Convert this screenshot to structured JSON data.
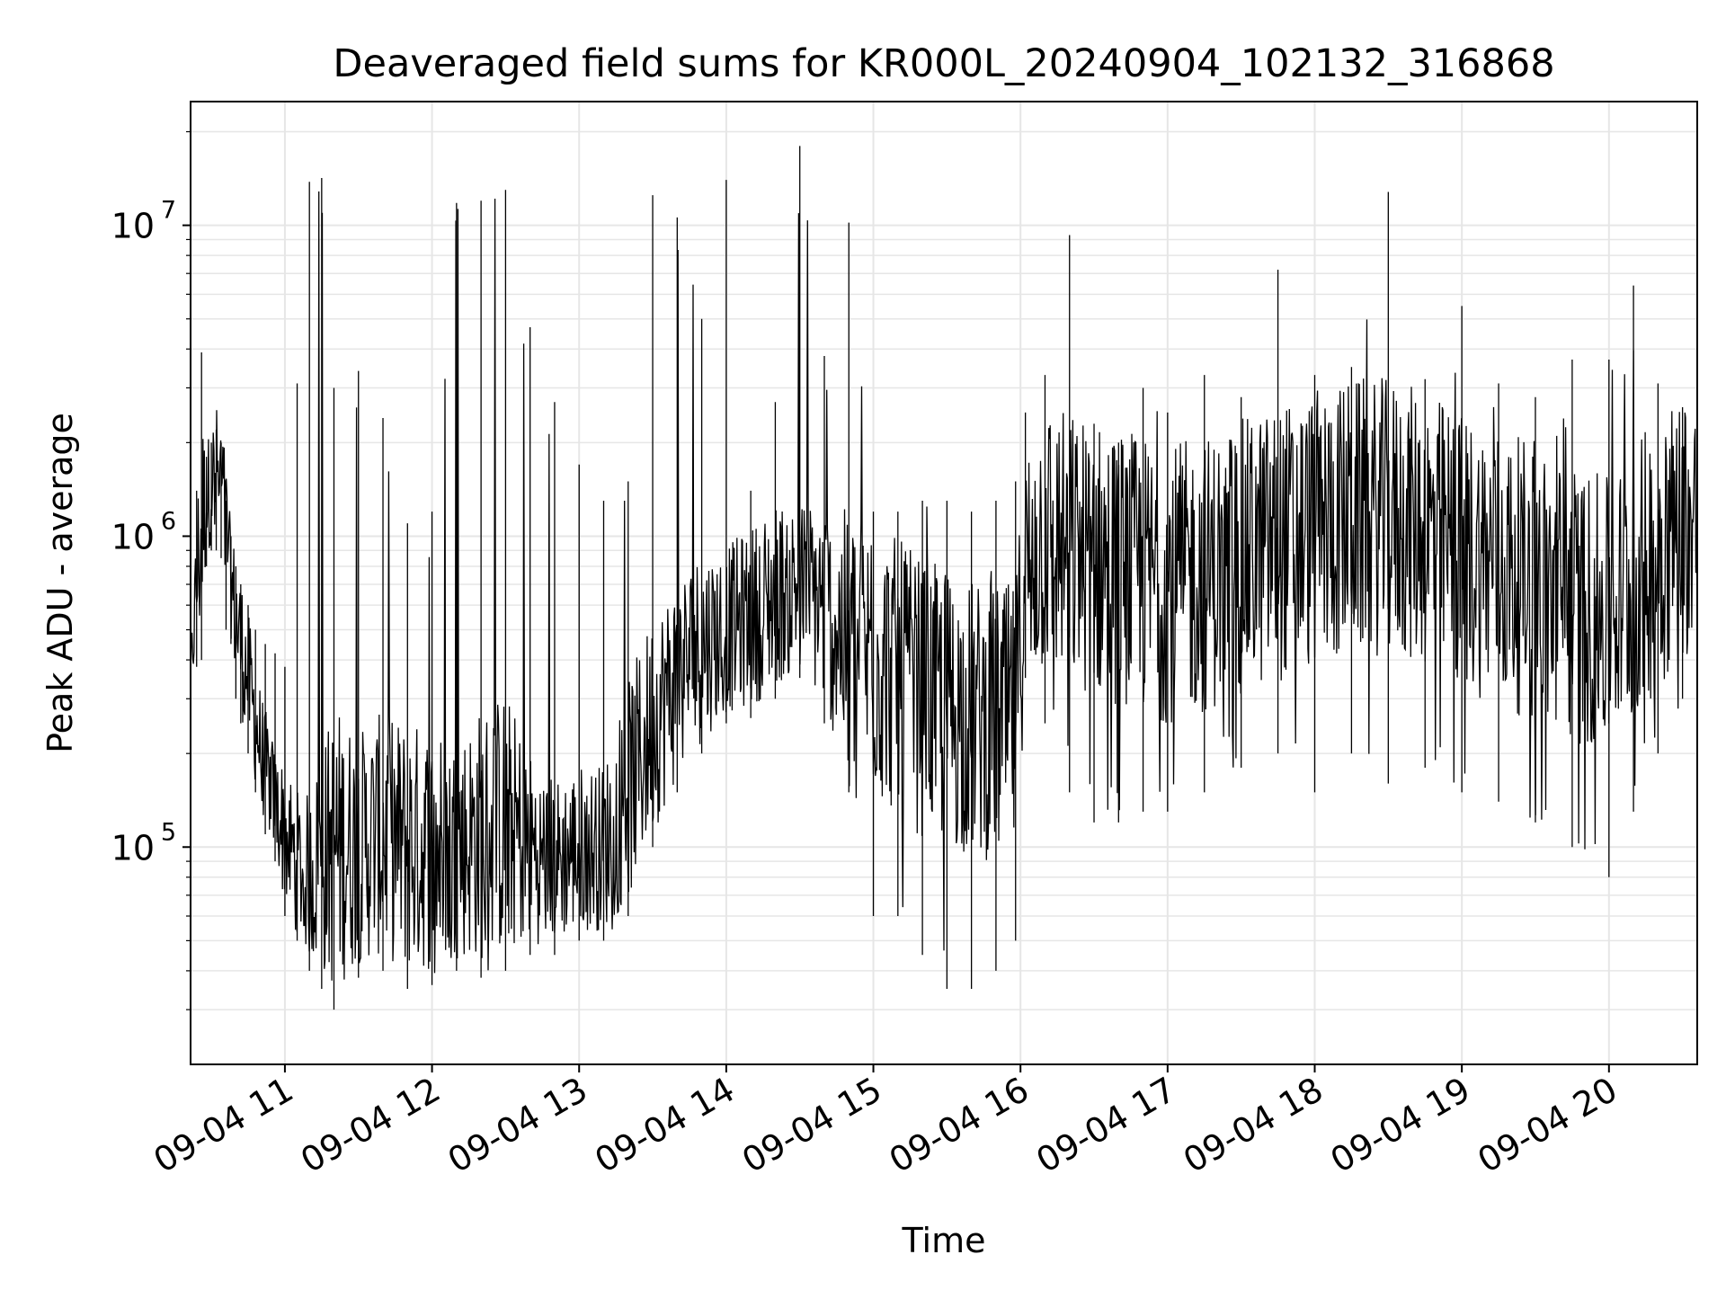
{
  "chart_data": {
    "type": "line",
    "title": "Deaveraged field sums for KR000L_20240904_102132_316868",
    "xlabel": "Time",
    "ylabel": "Peak ADU - average",
    "xscale": "time",
    "yscale": "log",
    "xlim": [
      "2024-09-04 10:21:32",
      "2024-09-04 20:36:00"
    ],
    "ylim": [
      20000,
      25000000
    ],
    "x_ticks": [
      {
        "value": "2024-09-04 11:00",
        "label": "09-04 11"
      },
      {
        "value": "2024-09-04 12:00",
        "label": "09-04 12"
      },
      {
        "value": "2024-09-04 13:00",
        "label": "09-04 13"
      },
      {
        "value": "2024-09-04 14:00",
        "label": "09-04 14"
      },
      {
        "value": "2024-09-04 15:00",
        "label": "09-04 15"
      },
      {
        "value": "2024-09-04 16:00",
        "label": "09-04 16"
      },
      {
        "value": "2024-09-04 17:00",
        "label": "09-04 17"
      },
      {
        "value": "2024-09-04 18:00",
        "label": "09-04 18"
      },
      {
        "value": "2024-09-04 19:00",
        "label": "09-04 19"
      },
      {
        "value": "2024-09-04 20:00",
        "label": "09-04 20"
      }
    ],
    "y_ticks": [
      {
        "value": 100000,
        "base": "10",
        "exp": "5"
      },
      {
        "value": 1000000,
        "base": "10",
        "exp": "6"
      },
      {
        "value": 10000000,
        "base": "10",
        "exp": "7"
      }
    ],
    "grid": {
      "major": true,
      "minor_y": true
    },
    "line_color": "#000000",
    "grid_color": "#e6e6e6",
    "series": [
      {
        "x": [
          "2024-09-04 10:21",
          "2024-09-04 10:24",
          "2024-09-04 10:26",
          "2024-09-04 10:28",
          "2024-09-04 10:30",
          "2024-09-04 10:32",
          "2024-09-04 10:34",
          "2024-09-04 10:36",
          "2024-09-04 10:38",
          "2024-09-04 10:40",
          "2024-09-04 10:42",
          "2024-09-04 10:45",
          "2024-09-04 10:48",
          "2024-09-04 10:52",
          "2024-09-04 10:56",
          "2024-09-04 11:00",
          "2024-09-04 11:05",
          "2024-09-04 11:10",
          "2024-09-04 11:15",
          "2024-09-04 11:20",
          "2024-09-04 11:30",
          "2024-09-04 11:40",
          "2024-09-04 11:50",
          "2024-09-04 12:00",
          "2024-09-04 12:10",
          "2024-09-04 12:20",
          "2024-09-04 12:30",
          "2024-09-04 12:40",
          "2024-09-04 12:50",
          "2024-09-04 13:00",
          "2024-09-04 13:10",
          "2024-09-04 13:20",
          "2024-09-04 13:30",
          "2024-09-04 13:40",
          "2024-09-04 13:50",
          "2024-09-04 14:00",
          "2024-09-04 14:10",
          "2024-09-04 14:20",
          "2024-09-04 14:30",
          "2024-09-04 14:40",
          "2024-09-04 14:50",
          "2024-09-04 15:00",
          "2024-09-04 15:10",
          "2024-09-04 15:20",
          "2024-09-04 15:30",
          "2024-09-04 15:40",
          "2024-09-04 15:50",
          "2024-09-04 15:58",
          "2024-09-04 16:02",
          "2024-09-04 16:10",
          "2024-09-04 16:20",
          "2024-09-04 16:30",
          "2024-09-04 16:40",
          "2024-09-04 16:50",
          "2024-09-04 17:00",
          "2024-09-04 17:15",
          "2024-09-04 17:30",
          "2024-09-04 17:45",
          "2024-09-04 18:00",
          "2024-09-04 18:15",
          "2024-09-04 18:30",
          "2024-09-04 18:45",
          "2024-09-04 19:00",
          "2024-09-04 19:15",
          "2024-09-04 19:30",
          "2024-09-04 19:45",
          "2024-09-04 20:00",
          "2024-09-04 20:10",
          "2024-09-04 20:20",
          "2024-09-04 20:30",
          "2024-09-04 20:36"
        ],
        "y": [
          300000,
          700000,
          1100000,
          1300000,
          1500000,
          1600000,
          1500000,
          1000000,
          700000,
          550000,
          450000,
          350000,
          250000,
          180000,
          140000,
          110000,
          90000,
          80000,
          90000,
          100000,
          100000,
          110000,
          100000,
          100000,
          100000,
          110000,
          120000,
          100000,
          90000,
          100000,
          100000,
          150000,
          250000,
          350000,
          450000,
          500000,
          550000,
          650000,
          700000,
          600000,
          450000,
          400000,
          350000,
          300000,
          280000,
          260000,
          250000,
          250000,
          850000,
          1000000,
          900000,
          850000,
          800000,
          750000,
          700000,
          750000,
          850000,
          950000,
          1050000,
          1150000,
          1150000,
          1050000,
          900000,
          800000,
          700000,
          600000,
          550000,
          700000,
          900000,
          1100000,
          1200000
        ],
        "low": [
          270000,
          380000,
          400000,
          800000,
          900000,
          900000,
          850000,
          500000,
          450000,
          300000,
          250000,
          200000,
          150000,
          110000,
          90000,
          60000,
          50000,
          40000,
          35000,
          30000,
          38000,
          40000,
          35000,
          36000,
          40000,
          38000,
          40000,
          45000,
          45000,
          50000,
          50000,
          60000,
          100000,
          150000,
          200000,
          250000,
          260000,
          300000,
          350000,
          250000,
          150000,
          60000,
          60000,
          45000,
          35000,
          35000,
          40000,
          50000,
          350000,
          250000,
          150000,
          120000,
          120000,
          130000,
          130000,
          150000,
          180000,
          200000,
          150000,
          200000,
          160000,
          180000,
          150000,
          140000,
          120000,
          100000,
          80000,
          130000,
          200000,
          300000,
          500000
        ],
        "high": [
          400000,
          1400000,
          3900000,
          1800000,
          2000000,
          2200000,
          2000000,
          1300000,
          1000000,
          800000,
          700000,
          600000,
          500000,
          450000,
          420000,
          380000,
          3100000,
          13800000,
          14200000,
          3000000,
          3400000,
          2400000,
          1100000,
          1200000,
          11800000,
          12000000,
          13000000,
          4700000,
          2700000,
          1700000,
          1300000,
          1500000,
          12500000,
          10600000,
          5000000,
          14000000,
          1400000,
          2700000,
          18000000,
          3800000,
          10200000,
          1200000,
          1200000,
          1300000,
          1300000,
          1200000,
          1300000,
          1500000,
          2500000,
          3300000,
          9300000,
          2300000,
          2000000,
          3000000,
          2500000,
          3300000,
          2800000,
          7200000,
          3300000,
          3500000,
          12800000,
          3200000,
          5500000,
          3100000,
          2800000,
          3700000,
          3700000,
          6400000,
          3100000,
          2600000,
          2500000
        ]
      }
    ]
  }
}
